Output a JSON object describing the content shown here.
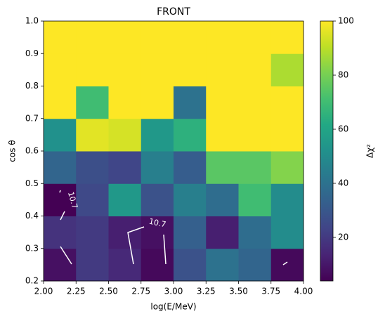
{
  "chart_data": {
    "type": "heatmap",
    "title": "FRONT",
    "x_label": "log(E/MeV)",
    "y_label": "cos θ",
    "colorbar_label": "Δχ²",
    "colormap": "viridis",
    "x_edges": [
      2.0,
      2.25,
      2.5,
      2.75,
      3.0,
      3.25,
      3.5,
      3.75,
      4.0
    ],
    "y_edges": [
      0.2,
      0.3,
      0.4,
      0.5,
      0.6,
      0.7,
      0.8,
      0.9,
      1.0
    ],
    "values": [
      [
        8,
        20,
        15,
        6,
        28,
        40,
        35,
        6
      ],
      [
        18,
        20,
        12,
        8,
        33,
        12,
        38,
        50
      ],
      [
        4,
        25,
        55,
        28,
        45,
        38,
        70,
        50
      ],
      [
        35,
        27,
        24,
        45,
        32,
        75,
        75,
        82
      ],
      [
        52,
        96,
        94,
        55,
        65,
        100,
        100,
        100
      ],
      [
        100,
        70,
        100,
        100,
        40,
        100,
        100,
        100
      ],
      [
        100,
        100,
        100,
        100,
        100,
        100,
        100,
        88
      ],
      [
        100,
        100,
        100,
        100,
        100,
        100,
        100,
        100
      ]
    ],
    "xlim": [
      2.0,
      4.0
    ],
    "ylim": [
      0.2,
      1.0
    ],
    "clim": [
      3.9,
      100
    ],
    "xticks": [
      {
        "value": 2.0,
        "label": "2.00"
      },
      {
        "value": 2.25,
        "label": "2.25"
      },
      {
        "value": 2.5,
        "label": "2.50"
      },
      {
        "value": 2.75,
        "label": "2.75"
      },
      {
        "value": 3.0,
        "label": "3.00"
      },
      {
        "value": 3.25,
        "label": "3.25"
      },
      {
        "value": 3.5,
        "label": "3.50"
      },
      {
        "value": 3.75,
        "label": "3.75"
      },
      {
        "value": 4.0,
        "label": "4.00"
      }
    ],
    "yticks": [
      0.2,
      0.3,
      0.4,
      0.5,
      0.6,
      0.7,
      0.8,
      0.9,
      {
        "value": 1.0,
        "label": "1.0"
      }
    ],
    "cticks": [
      20,
      40,
      60,
      80,
      100
    ],
    "contour_labels": [
      10.7,
      10.7
    ]
  }
}
